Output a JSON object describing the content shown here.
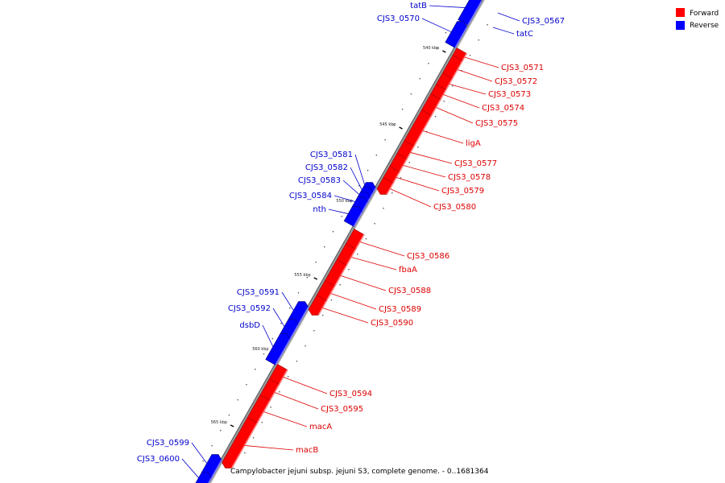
{
  "legend": [
    {
      "label": "Forward",
      "color": "#ff0000"
    },
    {
      "label": "Reverse",
      "color": "#0000ff"
    }
  ],
  "caption": "Campylobacter jejuni subsp. jejuni S3, complete genome. - 0..1681364",
  "colors": {
    "forward": "#ff0000",
    "reverse": "#0000ff",
    "forward_label": "#dd0000",
    "reverse_label": "#0000cc",
    "backbone": "#999999"
  },
  "ticks": [
    {
      "label": "540 kbp"
    },
    {
      "label": "545 kbp"
    },
    {
      "label": "550 kbp"
    },
    {
      "label": "555 kbp"
    },
    {
      "label": "560 kbp"
    },
    {
      "label": "565 kbp"
    }
  ],
  "genes": [
    {
      "name": "tatB",
      "strand": "reverse"
    },
    {
      "name": "CJS3_0570",
      "strand": "reverse"
    },
    {
      "name": "CJS3_0567",
      "strand": "reverse"
    },
    {
      "name": "tatC",
      "strand": "reverse"
    },
    {
      "name": "CJS3_0571",
      "strand": "forward"
    },
    {
      "name": "CJS3_0572",
      "strand": "forward"
    },
    {
      "name": "CJS3_0573",
      "strand": "forward"
    },
    {
      "name": "CJS3_0574",
      "strand": "forward"
    },
    {
      "name": "CJS3_0575",
      "strand": "forward"
    },
    {
      "name": "ligA",
      "strand": "forward"
    },
    {
      "name": "CJS3_0577",
      "strand": "forward"
    },
    {
      "name": "CJS3_0578",
      "strand": "forward"
    },
    {
      "name": "CJS3_0579",
      "strand": "forward"
    },
    {
      "name": "CJS3_0580",
      "strand": "forward"
    },
    {
      "name": "CJS3_0581",
      "strand": "reverse"
    },
    {
      "name": "CJS3_0582",
      "strand": "reverse"
    },
    {
      "name": "CJS3_0583",
      "strand": "reverse"
    },
    {
      "name": "CJS3_0584",
      "strand": "reverse"
    },
    {
      "name": "nth",
      "strand": "reverse"
    },
    {
      "name": "CJS3_0586",
      "strand": "forward"
    },
    {
      "name": "fbaA",
      "strand": "forward"
    },
    {
      "name": "CJS3_0588",
      "strand": "forward"
    },
    {
      "name": "CJS3_0589",
      "strand": "forward"
    },
    {
      "name": "CJS3_0590",
      "strand": "forward"
    },
    {
      "name": "CJS3_0591",
      "strand": "reverse"
    },
    {
      "name": "CJS3_0592",
      "strand": "reverse"
    },
    {
      "name": "dsbD",
      "strand": "reverse"
    },
    {
      "name": "CJS3_0594",
      "strand": "forward"
    },
    {
      "name": "CJS3_0595",
      "strand": "forward"
    },
    {
      "name": "macA",
      "strand": "forward"
    },
    {
      "name": "macB",
      "strand": "forward"
    },
    {
      "name": "CJS3_0599",
      "strand": "reverse"
    },
    {
      "name": "CJS3_0600",
      "strand": "reverse"
    }
  ]
}
